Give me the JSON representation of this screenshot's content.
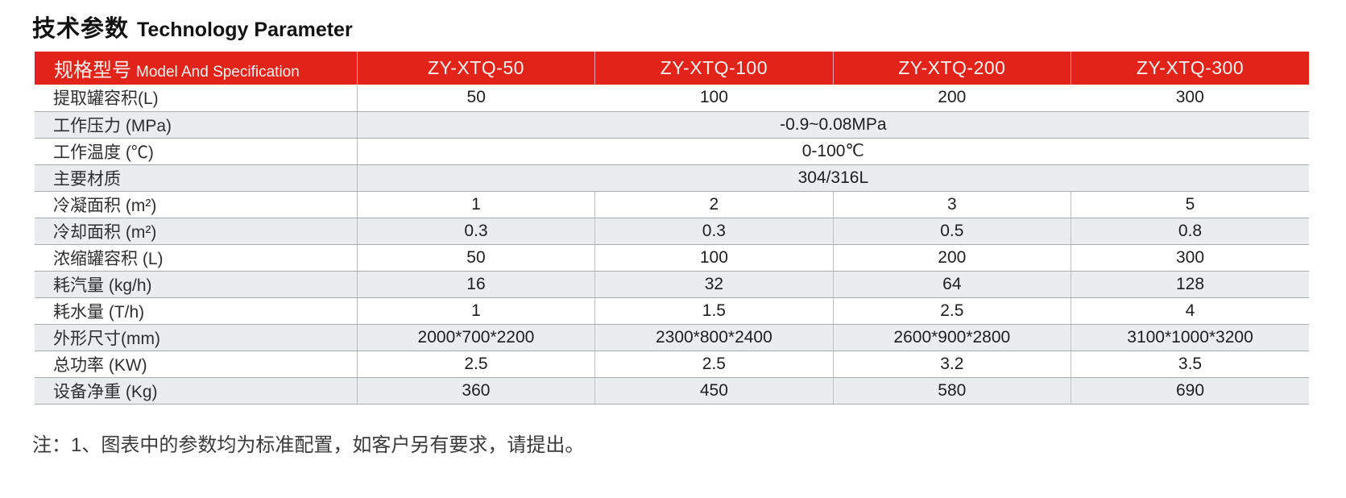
{
  "page": {
    "title_zh": "技术参数",
    "title_en": "Technology Parameter",
    "note": "注：1、图表中的参数均为标准配置，如客户另有要求，请提出。"
  },
  "colors": {
    "header_red": "#e2231a",
    "row_alt_gray": "#e9edf0",
    "border_gray": "#a7acb1"
  },
  "table": {
    "header": {
      "label_zh": "规格型号",
      "label_en": "Model And Specification",
      "models": [
        "ZY-XTQ-50",
        "ZY-XTQ-100",
        "ZY-XTQ-200",
        "ZY-XTQ-300"
      ]
    },
    "rows": [
      {
        "label": "提取罐容积(L)",
        "values": [
          "50",
          "100",
          "200",
          "300"
        ]
      },
      {
        "label": "工作压力 (MPa)",
        "value": "-0.9~0.08MPa"
      },
      {
        "label": "工作温度 (℃)",
        "value": "0-100℃"
      },
      {
        "label": "主要材质",
        "value": "304/316L"
      },
      {
        "label": "冷凝面积 (m²)",
        "values": [
          "1",
          "2",
          "3",
          "5"
        ]
      },
      {
        "label": "冷却面积 (m²)",
        "values": [
          "0.3",
          "0.3",
          "0.5",
          "0.8"
        ]
      },
      {
        "label": "浓缩罐容积 (L)",
        "values": [
          "50",
          "100",
          "200",
          "300"
        ]
      },
      {
        "label": "耗汽量 (kg/h)",
        "values": [
          "16",
          "32",
          "64",
          "128"
        ]
      },
      {
        "label": "耗水量 (T/h)",
        "values": [
          "1",
          "1.5",
          "2.5",
          "4"
        ]
      },
      {
        "label": "外形尺寸(mm)",
        "values": [
          "2000*700*2200",
          "2300*800*2400",
          "2600*900*2800",
          "3100*1000*3200"
        ]
      },
      {
        "label": "总功率 (KW)",
        "values": [
          "2.5",
          "2.5",
          "3.2",
          "3.5"
        ]
      },
      {
        "label": "设备净重 (Kg)",
        "values": [
          "360",
          "450",
          "580",
          "690"
        ]
      }
    ]
  }
}
